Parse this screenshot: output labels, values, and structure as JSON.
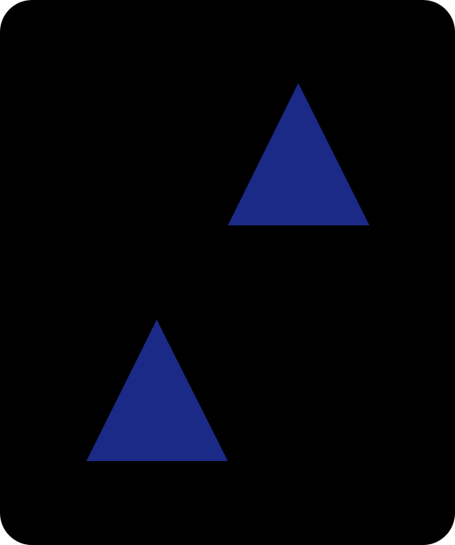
{
  "card": {
    "symbol": "triangle-icon",
    "count": 2,
    "color": "#1B2A87",
    "background": "#000000"
  }
}
